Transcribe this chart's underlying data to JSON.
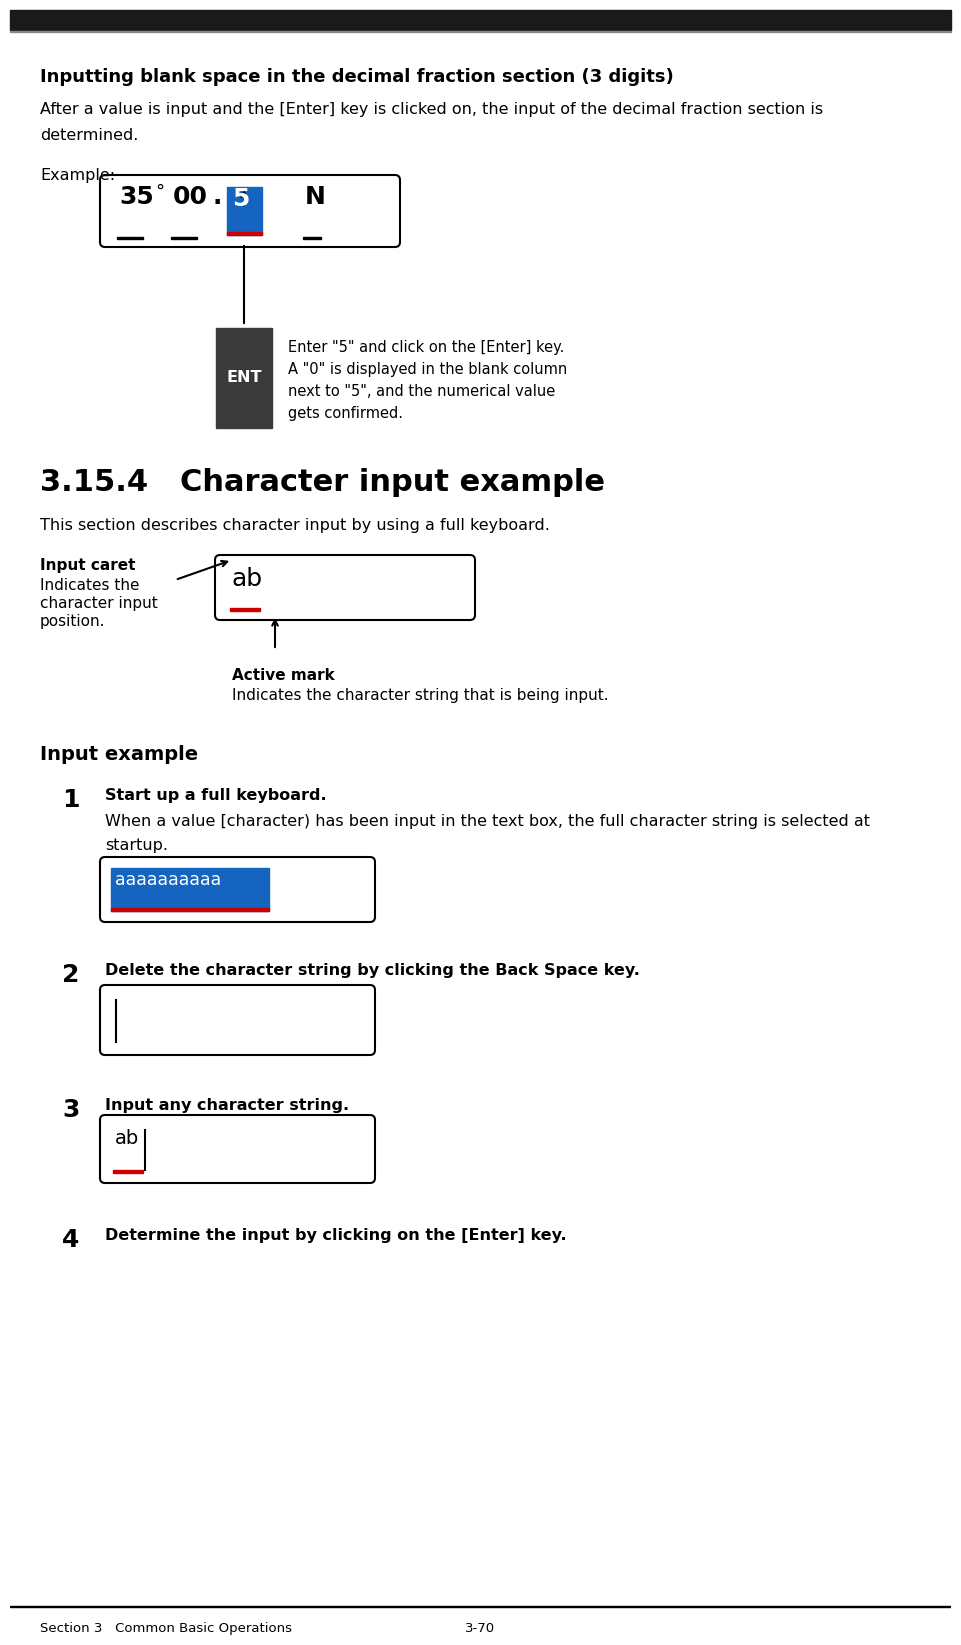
{
  "bg_color": "#ffffff",
  "top_bar_color": "#1a1a1a",
  "section_label": "Section 3   Common Basic Operations",
  "page_label": "3-70",
  "title1": "Inputting blank space in the decimal fraction section (3 digits)",
  "body1_line1": "After a value is input and the [Enter] key is clicked on, the input of the decimal fraction section is",
  "body1_line2": "determined.",
  "example_label": "Example:",
  "ent_label": "ENT",
  "ent_text_lines": [
    "Enter \"5\" and click on the [Enter] key.",
    "A \"0\" is displayed in the blank column",
    "next to \"5\", and the numerical value",
    "gets confirmed."
  ],
  "section_title": "3.15.4   Character input example",
  "section_body": "This section describes character input by using a full keyboard.",
  "input_caret_bold": "Input caret",
  "input_caret_body_lines": [
    "Indicates the",
    "character input",
    "position."
  ],
  "active_mark_bold": "Active mark",
  "active_mark_body": "Indicates the character string that is being input.",
  "ab_text": "ab",
  "input_example_label": "Input example",
  "step1_num": "1",
  "step1_bold": "Start up a full keyboard.",
  "step1_body_line1": "When a value [character) has been input in the text box, the full character string is selected at",
  "step1_body_line2": "startup.",
  "step1_box_text": "aaaaaaaaaa",
  "step2_num": "2",
  "step2_bold": "Delete the character string by clicking the Back Space key.",
  "step3_num": "3",
  "step3_bold": "Input any character string.",
  "step3_box_text": "ab",
  "step4_num": "4",
  "step4_bold": "Determine the input by clicking on the [Enter] key.",
  "blue_color": "#1565c0",
  "red_color": "#cc0000",
  "dark_gray": "#3a3a3a",
  "font_main": "DejaVu Sans"
}
